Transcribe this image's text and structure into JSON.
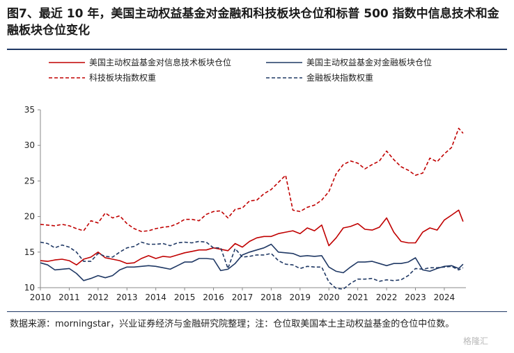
{
  "title": "图7、最近 10 年，美国主动权益基金对金融和科技板块仓位和标普 500 指数中信息技术和金融板块仓位变化",
  "source": "数据来源：morningstar，兴业证券经济与金融研究院整理；注：仓位取美国本土主动权益基金的仓位中位数。",
  "watermark": "格隆汇",
  "chart_data": {
    "type": "line",
    "xlim": [
      2010,
      2024.75
    ],
    "ylim": [
      10,
      35
    ],
    "x_ticks": [
      "2010",
      "2011",
      "2012",
      "2013",
      "2014",
      "2015",
      "2016",
      "2017",
      "2018",
      "2019",
      "2020",
      "2021",
      "2022",
      "2023",
      "2024"
    ],
    "y_ticks": [
      "10",
      "15",
      "20",
      "25",
      "30",
      "35"
    ],
    "grid": false,
    "legend_position": "top",
    "series": [
      {
        "name": "美国主动权益基金对信息技术板块仓位",
        "color": "#c00000",
        "dash": "solid",
        "x": [
          2010.0,
          2010.25,
          2010.5,
          2010.75,
          2011.0,
          2011.25,
          2011.5,
          2011.75,
          2012.0,
          2012.25,
          2012.5,
          2012.75,
          2013.0,
          2013.25,
          2013.5,
          2013.75,
          2014.0,
          2014.25,
          2014.5,
          2014.75,
          2015.0,
          2015.25,
          2015.5,
          2015.75,
          2016.0,
          2016.25,
          2016.5,
          2016.75,
          2017.0,
          2017.25,
          2017.5,
          2017.75,
          2018.0,
          2018.25,
          2018.5,
          2018.75,
          2019.0,
          2019.25,
          2019.5,
          2019.75,
          2020.0,
          2020.25,
          2020.5,
          2020.75,
          2021.0,
          2021.25,
          2021.5,
          2021.75,
          2022.0,
          2022.25,
          2022.5,
          2022.75,
          2023.0,
          2023.25,
          2023.5,
          2023.75,
          2024.0,
          2024.25,
          2024.5,
          2024.65
        ],
        "y": [
          13.8,
          13.7,
          13.9,
          14.0,
          13.8,
          13.2,
          14.0,
          14.3,
          15.0,
          14.2,
          14.0,
          13.8,
          13.4,
          13.5,
          14.1,
          14.5,
          14.1,
          14.4,
          14.3,
          14.6,
          14.9,
          15.1,
          15.3,
          15.3,
          15.6,
          15.4,
          15.2,
          16.2,
          15.7,
          16.5,
          17.0,
          17.2,
          17.2,
          17.6,
          17.8,
          18.0,
          17.6,
          18.4,
          18.0,
          18.8,
          15.9,
          17.0,
          18.4,
          18.6,
          19.0,
          18.2,
          18.1,
          18.5,
          19.8,
          17.8,
          16.5,
          16.3,
          16.3,
          17.8,
          18.4,
          18.1,
          19.5,
          20.2,
          20.9,
          19.3
        ]
      },
      {
        "name": "美国主动权益基金对金融板块仓位",
        "color": "#1f3864",
        "dash": "solid",
        "x": [
          2010.0,
          2010.25,
          2010.5,
          2010.75,
          2011.0,
          2011.25,
          2011.5,
          2011.75,
          2012.0,
          2012.25,
          2012.5,
          2012.75,
          2013.0,
          2013.25,
          2013.5,
          2013.75,
          2014.0,
          2014.25,
          2014.5,
          2014.75,
          2015.0,
          2015.25,
          2015.5,
          2015.75,
          2016.0,
          2016.25,
          2016.5,
          2016.75,
          2017.0,
          2017.25,
          2017.5,
          2017.75,
          2018.0,
          2018.25,
          2018.5,
          2018.75,
          2019.0,
          2019.25,
          2019.5,
          2019.75,
          2020.0,
          2020.25,
          2020.5,
          2020.75,
          2021.0,
          2021.25,
          2021.5,
          2021.75,
          2022.0,
          2022.25,
          2022.5,
          2022.75,
          2023.0,
          2023.25,
          2023.5,
          2023.75,
          2024.0,
          2024.25,
          2024.5,
          2024.65
        ],
        "y": [
          13.5,
          13.2,
          12.5,
          12.6,
          12.7,
          12.0,
          11.0,
          11.3,
          11.7,
          11.4,
          11.7,
          12.5,
          12.9,
          12.9,
          13.0,
          13.1,
          13.0,
          12.8,
          12.6,
          13.1,
          13.6,
          13.6,
          14.1,
          14.1,
          14.0,
          12.4,
          12.6,
          13.4,
          14.6,
          15.0,
          15.3,
          15.6,
          16.1,
          15.0,
          14.9,
          14.8,
          14.4,
          14.5,
          14.4,
          14.5,
          12.9,
          12.3,
          12.1,
          12.9,
          13.6,
          13.6,
          13.7,
          13.4,
          13.1,
          13.4,
          13.4,
          13.6,
          14.2,
          12.5,
          12.3,
          12.7,
          13.0,
          13.1,
          12.7,
          13.3
        ]
      },
      {
        "name": "科技板块指数权重",
        "color": "#c00000",
        "dash": "dashed",
        "x": [
          2010.0,
          2010.25,
          2010.5,
          2010.75,
          2011.0,
          2011.25,
          2011.5,
          2011.75,
          2012.0,
          2012.25,
          2012.5,
          2012.75,
          2013.0,
          2013.25,
          2013.5,
          2013.75,
          2014.0,
          2014.25,
          2014.5,
          2014.75,
          2015.0,
          2015.25,
          2015.5,
          2015.75,
          2016.0,
          2016.25,
          2016.5,
          2016.75,
          2017.0,
          2017.25,
          2017.5,
          2017.75,
          2018.0,
          2018.25,
          2018.5,
          2018.75,
          2019.0,
          2019.25,
          2019.5,
          2019.75,
          2020.0,
          2020.25,
          2020.5,
          2020.75,
          2021.0,
          2021.25,
          2021.5,
          2021.75,
          2022.0,
          2022.25,
          2022.5,
          2022.75,
          2023.0,
          2023.25,
          2023.5,
          2023.75,
          2024.0,
          2024.25,
          2024.5,
          2024.65
        ],
        "y": [
          18.9,
          18.8,
          18.7,
          18.9,
          18.7,
          18.3,
          18.0,
          19.4,
          19.1,
          20.5,
          19.8,
          20.1,
          19.0,
          18.3,
          17.9,
          18.0,
          18.3,
          18.5,
          18.6,
          19.0,
          19.6,
          19.6,
          19.4,
          20.3,
          20.7,
          20.8,
          19.8,
          21.0,
          21.2,
          22.2,
          22.3,
          23.2,
          23.8,
          24.8,
          25.8,
          20.9,
          20.7,
          21.3,
          21.6,
          22.3,
          23.5,
          26.0,
          27.3,
          27.8,
          27.5,
          26.7,
          27.3,
          27.8,
          29.2,
          28.0,
          27.0,
          26.5,
          25.8,
          26.1,
          28.2,
          27.7,
          28.8,
          29.7,
          32.4,
          31.7
        ]
      },
      {
        "name": "金融板块指数权重",
        "color": "#1f3864",
        "dash": "dashed",
        "x": [
          2010.0,
          2010.25,
          2010.5,
          2010.75,
          2011.0,
          2011.25,
          2011.5,
          2011.75,
          2012.0,
          2012.25,
          2012.5,
          2012.75,
          2013.0,
          2013.25,
          2013.5,
          2013.75,
          2014.0,
          2014.25,
          2014.5,
          2014.75,
          2015.0,
          2015.25,
          2015.5,
          2015.75,
          2016.0,
          2016.25,
          2016.5,
          2016.75,
          2017.0,
          2017.25,
          2017.5,
          2017.75,
          2018.0,
          2018.25,
          2018.5,
          2018.75,
          2019.0,
          2019.25,
          2019.5,
          2019.75,
          2020.0,
          2020.25,
          2020.5,
          2020.75,
          2021.0,
          2021.25,
          2021.5,
          2021.75,
          2022.0,
          2022.25,
          2022.5,
          2022.75,
          2023.0,
          2023.25,
          2023.5,
          2023.75,
          2024.0,
          2024.25,
          2024.5,
          2024.65
        ],
        "y": [
          16.4,
          16.2,
          15.6,
          16.0,
          15.7,
          15.0,
          13.7,
          13.7,
          14.8,
          14.4,
          14.3,
          15.0,
          15.6,
          15.8,
          16.4,
          16.1,
          16.1,
          16.2,
          15.9,
          16.3,
          16.4,
          16.3,
          16.5,
          16.4,
          15.6,
          15.6,
          12.7,
          15.5,
          14.3,
          14.4,
          14.6,
          14.6,
          14.8,
          13.8,
          13.3,
          13.2,
          12.7,
          13.0,
          12.9,
          12.9,
          10.8,
          9.9,
          9.8,
          10.6,
          11.2,
          11.2,
          11.3,
          10.9,
          11.1,
          11.0,
          11.1,
          11.7,
          12.7,
          12.6,
          12.8,
          12.8,
          12.9,
          13.0,
          12.5,
          12.8
        ]
      }
    ]
  }
}
